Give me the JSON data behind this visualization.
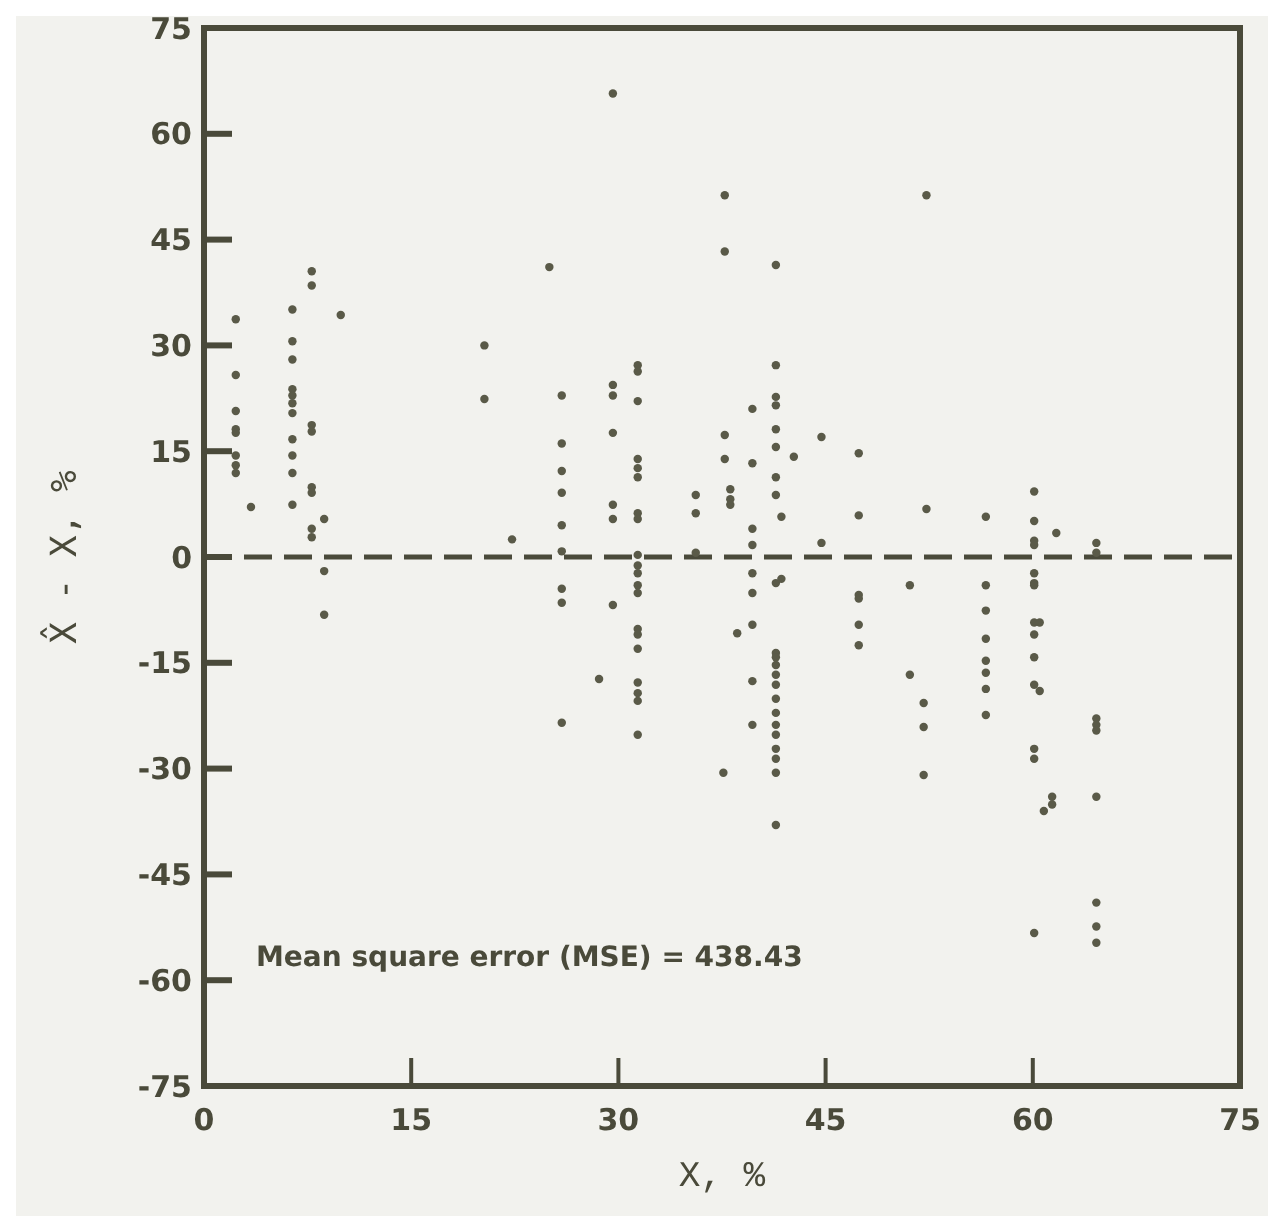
{
  "chart_data": {
    "type": "scatter",
    "xlabel": "X, %",
    "ylabel": "X̂ - X, %",
    "xlim": [
      0,
      75
    ],
    "ylim": [
      -75,
      75
    ],
    "xticks": [
      0,
      15,
      30,
      45,
      60,
      75
    ],
    "yticks": [
      -75,
      -60,
      -45,
      -30,
      -15,
      0,
      15,
      30,
      45,
      60,
      75
    ],
    "grid": false,
    "marker": "circle",
    "annotations": [
      "Mean square error (MSE) = 438.43"
    ],
    "ref_lines": [
      {
        "axis": "y",
        "value": 0,
        "color": "#4a4a3a",
        "line_style": "dashed"
      }
    ],
    "series": [
      {
        "color": "#5a5a48",
        "x": [
          2.3,
          2.3,
          2.3,
          2.3,
          2.3,
          2.3,
          2.3,
          2.3,
          3.4,
          6.4,
          6.4,
          6.4,
          6.4,
          6.4,
          6.4,
          6.4,
          6.4,
          6.4,
          6.4,
          6.4,
          7.8,
          7.8,
          7.8,
          7.8,
          7.8,
          7.8,
          7.8,
          7.8,
          8.7,
          8.7,
          8.7,
          9.9,
          20.3,
          20.3,
          22.3,
          25,
          25.9,
          25.9,
          25.9,
          25.9,
          25.9,
          25.9,
          25.9,
          25.9,
          25.9,
          29.6,
          29.6,
          29.6,
          29.6,
          29.6,
          29.6,
          29.6,
          28.6,
          31.4,
          31.4,
          31.4,
          31.4,
          31.4,
          31.4,
          31.4,
          31.4,
          31.4,
          31.4,
          31.4,
          31.4,
          31.4,
          31.4,
          31.4,
          31.4,
          31.4,
          31.4,
          31.4,
          31.4,
          35.6,
          35.6,
          35.6,
          38.1,
          38.1,
          38.1,
          37.7,
          37.7,
          37.7,
          37.7,
          38.6,
          37.6,
          39.7,
          39.7,
          39.7,
          39.7,
          39.7,
          39.7,
          39.7,
          39.7,
          39.7,
          41.4,
          41.4,
          41.4,
          41.4,
          41.4,
          41.4,
          41.4,
          41.4,
          41.4,
          41.4,
          41.4,
          41.4,
          41.4,
          41.4,
          41.4,
          41.4,
          41.4,
          41.4,
          41.4,
          41.4,
          41.4,
          41.4,
          41.8,
          41.8,
          42.7,
          44.7,
          44.7,
          47.4,
          47.4,
          47.4,
          47.4,
          47.4,
          47.4,
          52.3,
          52.3,
          51.1,
          51.1,
          52.1,
          52.1,
          52.1,
          56.6,
          56.6,
          56.6,
          56.6,
          56.6,
          56.6,
          56.6,
          56.6,
          60.1,
          60.1,
          60.1,
          60.1,
          60.1,
          60.1,
          60.1,
          60.1,
          60.1,
          60.1,
          60.1,
          60.1,
          60.1,
          60.1,
          60.5,
          60.5,
          60.8,
          61.4,
          61.4,
          61.7,
          64.6,
          64.6,
          64.6,
          64.6,
          64.6,
          64.6,
          64.6,
          64.6,
          64.6
        ],
        "values": [
          33.7,
          25.8,
          20.7,
          18.1,
          17.6,
          14.4,
          13,
          11.9,
          7.1,
          35.1,
          30.6,
          28,
          23.8,
          22.9,
          21.8,
          20.4,
          16.7,
          14.4,
          11.9,
          7.4,
          40.5,
          38.5,
          18.7,
          17.8,
          9.9,
          9.1,
          4,
          2.8,
          5.4,
          -2,
          -8.2,
          34.3,
          30,
          22.4,
          2.5,
          41.1,
          22.9,
          16.1,
          12.2,
          9.1,
          4.5,
          0.8,
          -4.5,
          -6.5,
          -23.5,
          65.7,
          24.4,
          22.9,
          17.6,
          7.4,
          5.4,
          -6.8,
          -17.3,
          27.2,
          26.3,
          22.1,
          13.9,
          12.6,
          11.3,
          6.2,
          5.4,
          0.3,
          -1.2,
          -2.3,
          -4,
          -5.1,
          -10.2,
          -11,
          -13,
          -17.8,
          -19.3,
          -20.4,
          -25.2,
          8.8,
          6.2,
          0.6,
          9.6,
          8.2,
          7.4,
          51.3,
          43.3,
          17.3,
          13.9,
          -10.8,
          -30.6,
          21,
          13.3,
          4,
          1.7,
          -2.3,
          -5.1,
          -9.6,
          -17.6,
          -23.8,
          41.4,
          27.2,
          22.7,
          21.5,
          18.1,
          15.6,
          11.3,
          8.8,
          -3.7,
          -13.6,
          -14.2,
          -15.3,
          -16.7,
          -18.1,
          -20.1,
          -22.1,
          -23.8,
          -25.2,
          -27.2,
          -28.6,
          -30.6,
          -38,
          5.7,
          -3.1,
          14.2,
          17,
          2,
          14.7,
          5.9,
          -5.4,
          -5.9,
          -9.6,
          -12.5,
          51.3,
          6.8,
          -4,
          -16.7,
          -20.7,
          -24.1,
          -30.9,
          5.7,
          -4,
          -7.6,
          -11.6,
          -14.7,
          -16.4,
          -18.7,
          -22.4,
          9.3,
          5.1,
          2.3,
          1.7,
          -2.3,
          -3.7,
          -4,
          -9.3,
          -11,
          -14.2,
          -18.1,
          -27.2,
          -28.6,
          -53.3,
          -9.3,
          -19,
          -36,
          -34,
          -35.1,
          3.4,
          2,
          0.6,
          -22.9,
          -23.8,
          -24.6,
          -34,
          -49,
          -52.4,
          -54.7
        ]
      }
    ]
  }
}
